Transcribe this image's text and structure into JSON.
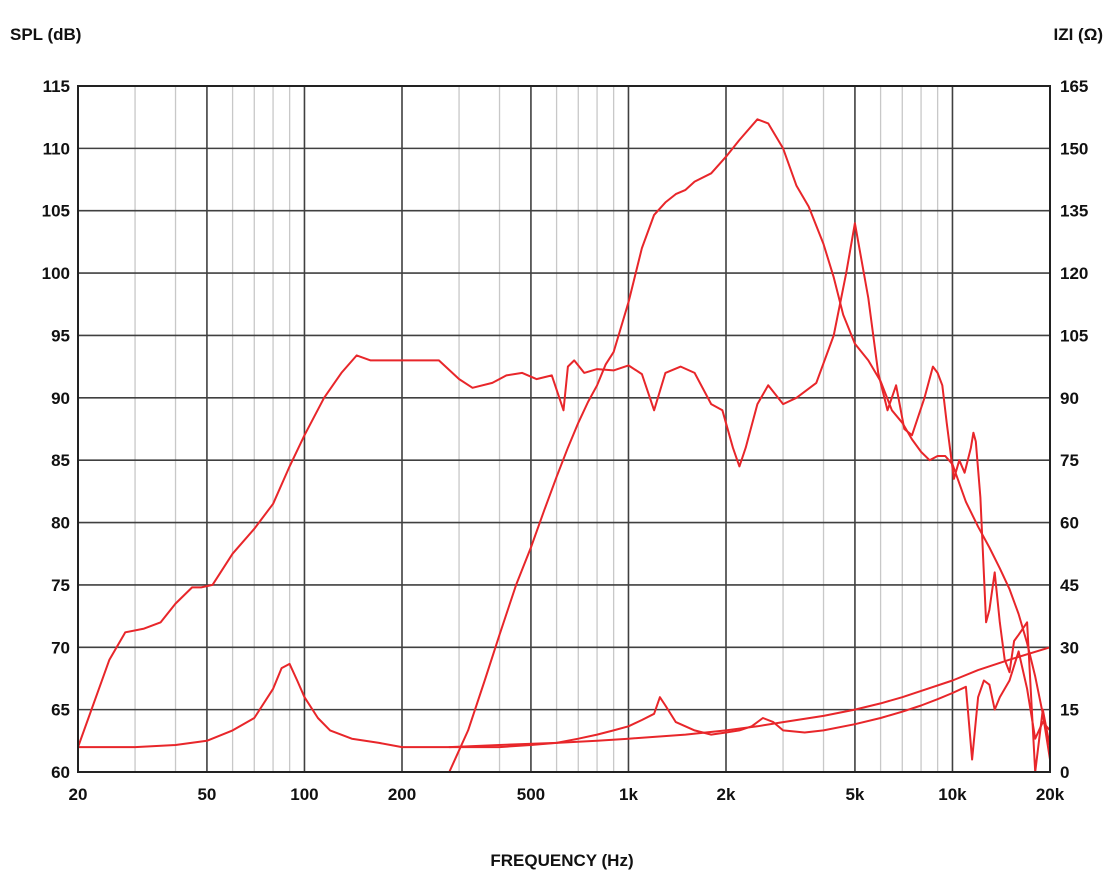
{
  "chart_data": {
    "type": "line",
    "title": "",
    "xlabel": "FREQUENCY (Hz)",
    "ylabel_left": "SPL (dB)",
    "ylabel_right": "IZI (Ω)",
    "x_scale": "log",
    "xlim": [
      20,
      20000
    ],
    "ylim_left": [
      60,
      115
    ],
    "ylim_right": [
      0,
      165
    ],
    "grid": true,
    "legend": "none",
    "curve_color": "#e8262a",
    "x_ticks": [
      {
        "value": 20,
        "label": "20"
      },
      {
        "value": 50,
        "label": "50"
      },
      {
        "value": 100,
        "label": "100"
      },
      {
        "value": 200,
        "label": "200"
      },
      {
        "value": 500,
        "label": "500"
      },
      {
        "value": 1000,
        "label": "1k"
      },
      {
        "value": 2000,
        "label": "2k"
      },
      {
        "value": 5000,
        "label": "5k"
      },
      {
        "value": 10000,
        "label": "10k"
      },
      {
        "value": 20000,
        "label": "20k"
      }
    ],
    "x_minor_grid": [
      30,
      40,
      60,
      70,
      80,
      90,
      300,
      400,
      600,
      700,
      800,
      900,
      3000,
      4000,
      6000,
      7000,
      8000,
      9000
    ],
    "y_left_ticks": [
      60,
      65,
      70,
      75,
      80,
      85,
      90,
      95,
      100,
      105,
      110,
      115
    ],
    "y_right_ticks": [
      0,
      15,
      30,
      45,
      60,
      75,
      90,
      105,
      120,
      135,
      150,
      165
    ],
    "series": [
      {
        "axis": "left",
        "x": [
          20,
          25,
          28,
          32,
          36,
          40,
          45,
          48,
          52,
          60,
          70,
          80,
          90,
          100,
          115,
          130,
          145,
          160,
          180,
          220,
          260,
          300,
          330,
          380,
          420,
          470,
          520,
          580,
          630,
          650,
          680,
          730,
          800,
          900,
          1000,
          1100,
          1200,
          1300,
          1450,
          1600,
          1800,
          1950,
          2100,
          2200,
          2300,
          2500,
          2700,
          3000,
          3300,
          3800,
          4300,
          4700,
          5000,
          5500,
          5900,
          6300,
          6700,
          7100,
          7500,
          8200,
          8700,
          9000,
          9300,
          9600,
          10100,
          10500,
          10900,
          11400,
          11600,
          11800,
          12200,
          12700,
          13000,
          13500,
          14000,
          14500,
          15000,
          15500,
          16000,
          17000,
          18000,
          19000,
          20000
        ],
        "y": [
          62,
          69,
          71.2,
          71.5,
          72,
          73.5,
          74.8,
          74.8,
          75,
          77.5,
          79.5,
          81.5,
          84.5,
          87,
          90,
          92,
          93.4,
          93,
          93,
          93,
          93,
          91.5,
          90.8,
          91.2,
          91.8,
          92,
          91.5,
          91.8,
          89,
          92.5,
          93,
          92,
          92.3,
          92.2,
          92.6,
          91.9,
          89,
          92,
          92.5,
          92,
          89.5,
          89,
          86,
          84.5,
          86,
          89.5,
          91,
          89.5,
          90,
          91.2,
          95,
          100,
          104,
          98,
          92,
          89,
          91,
          87.5,
          87,
          90,
          92.5,
          92,
          91,
          88,
          83.5,
          85,
          84,
          86,
          87.2,
          86.5,
          82,
          72,
          73,
          76,
          72,
          69,
          68,
          70.5,
          71,
          72,
          60,
          65,
          62
        ]
      },
      {
        "axis": "right",
        "x": [
          280,
          320,
          360,
          400,
          450,
          500,
          550,
          600,
          650,
          700,
          750,
          800,
          850,
          900,
          1000,
          1100,
          1200,
          1300,
          1400,
          1500,
          1600,
          1800,
          2000,
          2200,
          2500,
          2700,
          3000,
          3300,
          3600,
          4000,
          4300,
          4600,
          5000,
          5500,
          6000,
          6500,
          7000,
          7500,
          8000,
          8500,
          9000,
          9500,
          10000,
          11000,
          12000,
          13000,
          14000,
          15000,
          16000,
          17000,
          18000,
          19000,
          20000
        ],
        "y": [
          0,
          10,
          22,
          33,
          45,
          54,
          63,
          71,
          78,
          84,
          89,
          93,
          98,
          101,
          113,
          126,
          134,
          137,
          139,
          140,
          142,
          144,
          148,
          152,
          157,
          156,
          150,
          141,
          136,
          127,
          119,
          110,
          103,
          99,
          94,
          87,
          84,
          80,
          77,
          75,
          76,
          76,
          74,
          65,
          59,
          54,
          49,
          44,
          38,
          31,
          23,
          14,
          3
        ]
      },
      {
        "axis": "right",
        "x": [
          20,
          30,
          40,
          50,
          60,
          70,
          80,
          85,
          90,
          95,
          100,
          110,
          120,
          140,
          170,
          200,
          300,
          400,
          500,
          600,
          700,
          800,
          900,
          1000,
          1100,
          1200,
          1250,
          1300,
          1400,
          1600,
          1800,
          2000,
          2200,
          2400,
          2600,
          2800,
          3000,
          3500,
          4000,
          5000,
          6000,
          7000,
          8000,
          9000,
          10000,
          11000,
          11500,
          12000,
          12500,
          13000,
          13500,
          14000,
          15000,
          16000,
          17000,
          18000,
          19000,
          20000
        ],
        "y": [
          6,
          6,
          6.5,
          7.5,
          10,
          13,
          20,
          25,
          26,
          22,
          18,
          13,
          10,
          8,
          7,
          6,
          6,
          6,
          6.5,
          7,
          8,
          9,
          10,
          11,
          12.5,
          14,
          18,
          16,
          12,
          10,
          9,
          9.5,
          10,
          11,
          13,
          12,
          10,
          9.5,
          10,
          11.5,
          13,
          14.5,
          16,
          17.5,
          19,
          20.5,
          3,
          18,
          22,
          21,
          15,
          18,
          22,
          29,
          20,
          8,
          12,
          10
        ]
      },
      {
        "axis": "right",
        "x": [
          280,
          400,
          600,
          800,
          1000,
          1500,
          2000,
          2500,
          3000,
          4000,
          5000,
          6000,
          7000,
          8000,
          10000,
          12000,
          15000,
          20000
        ],
        "y": [
          6,
          6.5,
          7,
          7.5,
          8,
          9,
          10,
          11,
          12,
          13.5,
          15,
          16.5,
          18,
          19.5,
          22,
          24.5,
          27,
          30
        ]
      }
    ]
  }
}
